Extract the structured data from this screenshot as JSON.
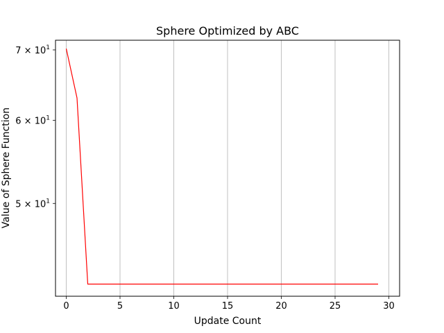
{
  "chart_data": {
    "type": "line",
    "title": "Sphere Optimized by ABC",
    "xlabel": "Update Count",
    "ylabel": "Value of Sphere Function",
    "xlim": [
      -1,
      31
    ],
    "ylim": [
      40.8,
      71.5
    ],
    "yscale": "log",
    "grid": "x-only",
    "line_color": "#ff0000",
    "x_ticks": [
      0,
      5,
      10,
      15,
      20,
      25,
      30
    ],
    "y_ticks": [
      {
        "value": 70,
        "base": "7",
        "exp": "1",
        "times": "×",
        "ten": "10"
      },
      {
        "value": 60,
        "base": "6",
        "exp": "1",
        "times": "×",
        "ten": "10"
      },
      {
        "value": 50,
        "base": "5",
        "exp": "1",
        "times": "×",
        "ten": "10"
      }
    ],
    "series": [
      {
        "x": [
          0,
          1,
          2,
          3,
          4,
          5,
          6,
          7,
          8,
          9,
          10,
          11,
          12,
          13,
          14,
          15,
          16,
          17,
          18,
          19,
          20,
          21,
          22,
          23,
          24,
          25,
          26,
          27,
          28,
          29
        ],
        "y": [
          70.2,
          63.0,
          41.9,
          41.9,
          41.9,
          41.9,
          41.9,
          41.9,
          41.9,
          41.9,
          41.9,
          41.9,
          41.9,
          41.9,
          41.9,
          41.9,
          41.9,
          41.9,
          41.9,
          41.9,
          41.9,
          41.9,
          41.9,
          41.9,
          41.9,
          41.9,
          41.9,
          41.9,
          41.9,
          41.9
        ]
      }
    ]
  }
}
